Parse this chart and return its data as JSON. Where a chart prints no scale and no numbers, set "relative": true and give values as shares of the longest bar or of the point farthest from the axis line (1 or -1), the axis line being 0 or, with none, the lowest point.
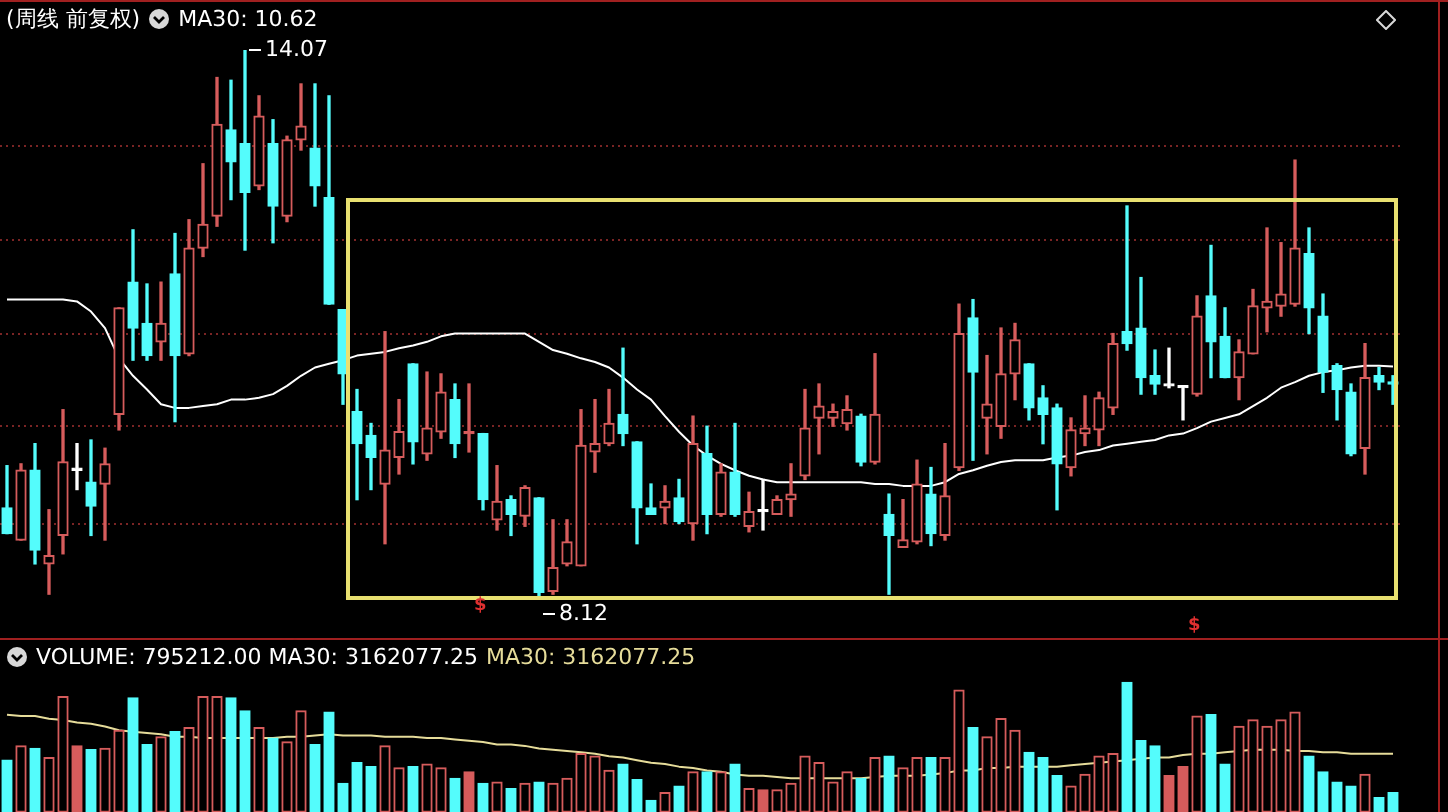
{
  "chart_data": [
    {
      "type": "candlestick",
      "title": "(周线 前复权)",
      "subtitle": "MA30: 10.62",
      "tick_labels": false,
      "grid": "y",
      "yticks": [
        {
          "value": 8.91,
          "label": null
        },
        {
          "value": 9.97,
          "label": null
        },
        {
          "value": 10.98,
          "label": null
        },
        {
          "value": 12.0,
          "label": null
        },
        {
          "value": 13.02,
          "label": null
        }
      ],
      "annotations": [
        "14.07",
        "8.12",
        "$",
        "$"
      ],
      "categories": [
        null,
        null,
        null,
        null,
        null,
        null,
        null,
        null,
        null,
        null,
        null,
        null,
        null,
        null,
        null,
        null,
        null,
        null,
        null,
        null,
        null,
        null,
        null,
        null,
        null,
        null,
        null,
        null,
        null,
        null,
        null,
        null,
        null,
        null,
        null,
        null,
        null,
        null,
        null,
        null,
        null,
        null,
        null,
        null,
        null,
        null,
        null,
        null,
        null,
        null,
        null,
        null,
        null,
        null,
        null,
        null,
        null,
        null,
        null,
        null,
        null,
        null,
        null,
        null,
        null,
        null,
        null,
        null,
        null,
        null,
        null,
        null,
        null,
        null,
        null,
        null,
        null,
        null,
        null,
        null,
        null,
        null,
        null,
        null,
        null,
        null,
        null,
        null,
        null,
        null,
        null,
        null,
        null,
        null,
        null,
        null,
        null,
        null,
        null,
        null
      ],
      "ohlc": [
        [
          9.08,
          9.54,
          8.8,
          8.8
        ],
        [
          8.73,
          9.56,
          8.73,
          9.49
        ],
        [
          9.49,
          9.78,
          8.47,
          8.62
        ],
        [
          8.47,
          9.06,
          8.14,
          8.56
        ],
        [
          8.78,
          10.15,
          8.58,
          9.58
        ],
        [
          9.49,
          9.78,
          9.28,
          9.49
        ],
        [
          9.36,
          9.82,
          8.78,
          9.1
        ],
        [
          9.34,
          9.73,
          8.73,
          9.56
        ],
        [
          10.1,
          11.26,
          9.93,
          11.26
        ],
        [
          11.54,
          12.11,
          10.69,
          11.04
        ],
        [
          11.09,
          11.52,
          10.69,
          10.74
        ],
        [
          10.89,
          11.54,
          10.69,
          11.09
        ],
        [
          11.63,
          12.07,
          10.02,
          10.74
        ],
        [
          10.76,
          12.22,
          10.74,
          11.91
        ],
        [
          11.91,
          12.83,
          11.82,
          12.17
        ],
        [
          12.26,
          13.77,
          12.15,
          13.26
        ],
        [
          13.2,
          13.74,
          12.44,
          12.85
        ],
        [
          13.05,
          14.07,
          11.89,
          12.52
        ],
        [
          12.59,
          13.57,
          12.55,
          13.35
        ],
        [
          13.05,
          13.31,
          11.97,
          12.37
        ],
        [
          12.26,
          13.13,
          12.2,
          13.09
        ],
        [
          13.09,
          13.7,
          12.98,
          13.24
        ],
        [
          13.0,
          13.7,
          12.37,
          12.59
        ],
        [
          12.46,
          13.57,
          11.3,
          11.3
        ],
        [
          11.24,
          11.24,
          10.21,
          10.54
        ],
        [
          10.13,
          10.37,
          9.17,
          9.78
        ],
        [
          9.87,
          10.0,
          9.28,
          9.63
        ],
        [
          9.34,
          11.0,
          8.69,
          9.71
        ],
        [
          9.63,
          10.26,
          9.45,
          9.91
        ],
        [
          10.65,
          10.65,
          9.56,
          9.8
        ],
        [
          9.67,
          10.56,
          9.6,
          9.95
        ],
        [
          9.91,
          10.54,
          9.84,
          10.34
        ],
        [
          10.26,
          10.43,
          9.63,
          9.78
        ],
        [
          9.89,
          10.43,
          9.69,
          9.89
        ],
        [
          9.89,
          9.89,
          9.06,
          9.17
        ],
        [
          8.95,
          9.54,
          8.84,
          9.15
        ],
        [
          9.17,
          9.21,
          8.78,
          9.01
        ],
        [
          8.99,
          9.32,
          8.88,
          9.3
        ],
        [
          9.19,
          9.19,
          8.12,
          8.16
        ],
        [
          8.17,
          8.95,
          8.14,
          8.43
        ],
        [
          8.47,
          8.95,
          8.45,
          8.71
        ],
        [
          8.45,
          10.15,
          8.45,
          9.76
        ],
        [
          9.69,
          10.26,
          9.47,
          9.78
        ],
        [
          9.78,
          10.37,
          9.76,
          10.0
        ],
        [
          10.1,
          10.82,
          9.76,
          9.89
        ],
        [
          9.8,
          9.8,
          8.69,
          9.08
        ],
        [
          9.08,
          9.34,
          9.01,
          9.01
        ],
        [
          9.08,
          9.32,
          8.91,
          9.15
        ],
        [
          9.19,
          9.39,
          8.91,
          8.93
        ],
        [
          8.91,
          10.08,
          8.73,
          9.78
        ],
        [
          9.67,
          9.97,
          8.8,
          9.01
        ],
        [
          9.01,
          9.56,
          8.99,
          9.47
        ],
        [
          9.47,
          10.0,
          8.99,
          9.01
        ],
        [
          8.88,
          9.25,
          8.82,
          9.04
        ],
        [
          9.04,
          9.39,
          8.84,
          9.04
        ],
        [
          9.01,
          9.21,
          9.01,
          9.17
        ],
        [
          9.17,
          9.56,
          8.99,
          9.23
        ],
        [
          9.43,
          10.37,
          9.39,
          9.95
        ],
        [
          10.06,
          10.43,
          9.67,
          10.19
        ],
        [
          10.06,
          10.21,
          9.97,
          10.13
        ],
        [
          10.0,
          10.3,
          9.93,
          10.15
        ],
        [
          10.08,
          10.1,
          9.54,
          9.58
        ],
        [
          9.58,
          10.76,
          9.56,
          10.1
        ],
        [
          9.01,
          9.23,
          8.14,
          8.78
        ],
        [
          8.65,
          9.17,
          8.65,
          8.73
        ],
        [
          8.71,
          9.6,
          8.69,
          9.34
        ],
        [
          9.23,
          9.52,
          8.67,
          8.8
        ],
        [
          8.78,
          9.78,
          8.73,
          9.21
        ],
        [
          9.52,
          11.3,
          9.49,
          10.98
        ],
        [
          11.15,
          11.35,
          9.6,
          10.56
        ],
        [
          10.06,
          10.74,
          9.67,
          10.21
        ],
        [
          9.97,
          11.04,
          9.84,
          10.54
        ],
        [
          10.54,
          11.09,
          10.26,
          10.91
        ],
        [
          10.65,
          10.65,
          10.04,
          10.17
        ],
        [
          10.28,
          10.41,
          9.78,
          10.1
        ],
        [
          10.17,
          10.21,
          9.06,
          9.56
        ],
        [
          9.52,
          10.06,
          9.43,
          9.93
        ],
        [
          9.89,
          10.3,
          9.76,
          9.95
        ],
        [
          9.93,
          10.34,
          9.76,
          10.28
        ],
        [
          10.17,
          10.98,
          10.1,
          10.87
        ],
        [
          11.0,
          12.37,
          10.8,
          10.87
        ],
        [
          11.04,
          11.59,
          10.32,
          10.5
        ],
        [
          10.52,
          10.8,
          10.32,
          10.43
        ],
        [
          10.41,
          10.82,
          10.39,
          10.41
        ],
        [
          10.39,
          10.39,
          10.04,
          10.39
        ],
        [
          10.32,
          11.39,
          10.3,
          11.17
        ],
        [
          11.39,
          11.94,
          10.5,
          10.89
        ],
        [
          10.95,
          11.26,
          10.5,
          10.5
        ],
        [
          10.5,
          10.91,
          10.26,
          10.78
        ],
        [
          10.76,
          11.46,
          10.76,
          11.28
        ],
        [
          11.26,
          12.13,
          11.0,
          11.33
        ],
        [
          11.28,
          11.97,
          11.17,
          11.41
        ],
        [
          11.3,
          12.87,
          11.28,
          11.91
        ],
        [
          11.85,
          12.13,
          10.98,
          11.26
        ],
        [
          11.17,
          11.41,
          10.34,
          10.56
        ],
        [
          10.63,
          10.65,
          10.04,
          10.37
        ],
        [
          10.34,
          10.43,
          9.65,
          9.67
        ],
        [
          9.73,
          10.87,
          9.45,
          10.5
        ],
        [
          10.52,
          10.61,
          10.37,
          10.45
        ],
        [
          10.43,
          10.52,
          10.21,
          10.43
        ]
      ],
      "colors": [
        "#54fcfc",
        "#d65c5c",
        "#54fcfc",
        "#d65c5c",
        "#d65c5c",
        "#ffffff",
        "#54fcfc",
        "#d65c5c",
        "#d65c5c",
        "#54fcfc",
        "#54fcfc",
        "#d65c5c",
        "#54fcfc",
        "#d65c5c",
        "#d65c5c",
        "#d65c5c",
        "#54fcfc",
        "#54fcfc",
        "#d65c5c",
        "#54fcfc",
        "#d65c5c",
        "#d65c5c",
        "#54fcfc",
        "#54fcfc",
        "#54fcfc",
        "#54fcfc",
        "#54fcfc",
        "#d65c5c",
        "#d65c5c",
        "#54fcfc",
        "#d65c5c",
        "#d65c5c",
        "#54fcfc",
        "#d65c5c",
        "#54fcfc",
        "#d65c5c",
        "#54fcfc",
        "#d65c5c",
        "#54fcfc",
        "#d65c5c",
        "#d65c5c",
        "#d65c5c",
        "#d65c5c",
        "#d65c5c",
        "#54fcfc",
        "#54fcfc",
        "#54fcfc",
        "#d65c5c",
        "#54fcfc",
        "#d65c5c",
        "#54fcfc",
        "#d65c5c",
        "#54fcfc",
        "#d65c5c",
        "#ffffff",
        "#d65c5c",
        "#d65c5c",
        "#d65c5c",
        "#d65c5c",
        "#d65c5c",
        "#d65c5c",
        "#54fcfc",
        "#d65c5c",
        "#54fcfc",
        "#d65c5c",
        "#d65c5c",
        "#54fcfc",
        "#d65c5c",
        "#d65c5c",
        "#54fcfc",
        "#d65c5c",
        "#d65c5c",
        "#d65c5c",
        "#54fcfc",
        "#54fcfc",
        "#54fcfc",
        "#d65c5c",
        "#d65c5c",
        "#d65c5c",
        "#d65c5c",
        "#54fcfc",
        "#54fcfc",
        "#54fcfc",
        "#ffffff",
        "#ffffff",
        "#d65c5c",
        "#54fcfc",
        "#54fcfc",
        "#d65c5c",
        "#d65c5c",
        "#d65c5c",
        "#d65c5c",
        "#d65c5c",
        "#54fcfc",
        "#54fcfc",
        "#54fcfc",
        "#54fcfc",
        "#d65c5c",
        "#54fcfc",
        "#54fcfc"
      ],
      "series": [
        {
          "type": "line",
          "color": "#ffffff",
          "values": [
            11.35,
            11.35,
            11.35,
            11.35,
            11.35,
            11.33,
            11.22,
            11.04,
            10.71,
            10.52,
            10.37,
            10.21,
            10.17,
            10.17,
            10.19,
            10.21,
            10.26,
            10.26,
            10.28,
            10.32,
            10.41,
            10.52,
            10.61,
            10.65,
            10.69,
            10.74,
            10.76,
            10.78,
            10.82,
            10.85,
            10.89,
            10.95,
            10.98,
            10.98,
            10.98,
            10.98,
            10.98,
            10.98,
            10.89,
            10.8,
            10.76,
            10.71,
            10.67,
            10.61,
            10.5,
            10.37,
            10.26,
            10.08,
            9.91,
            9.76,
            9.65,
            9.56,
            9.49,
            9.43,
            9.39,
            9.36,
            9.36,
            9.36,
            9.36,
            9.36,
            9.36,
            9.36,
            9.34,
            9.34,
            9.32,
            9.32,
            9.32,
            9.36,
            9.45,
            9.49,
            9.54,
            9.58,
            9.6,
            9.6,
            9.6,
            9.63,
            9.65,
            9.69,
            9.71,
            9.76,
            9.78,
            9.8,
            9.82,
            9.87,
            9.89,
            9.95,
            10.02,
            10.06,
            10.1,
            10.19,
            10.28,
            10.39,
            10.45,
            10.52,
            10.56,
            10.58,
            10.61,
            10.63,
            10.63,
            10.62
          ]
        }
      ]
    },
    {
      "type": "bar",
      "relative": true,
      "title": "VOLUME: 795212.00 MA30: 3162077.25",
      "subtitle": "MA30: 3162077.25",
      "tick_labels": false,
      "categories": [
        null,
        null,
        null,
        null,
        null,
        null,
        null,
        null,
        null,
        null,
        null,
        null,
        null,
        null,
        null,
        null,
        null,
        null,
        null,
        null,
        null,
        null,
        null,
        null,
        null,
        null,
        null,
        null,
        null,
        null,
        null,
        null,
        null,
        null,
        null,
        null,
        null,
        null,
        null,
        null,
        null,
        null,
        null,
        null,
        null,
        null,
        null,
        null,
        null,
        null,
        null,
        null,
        null,
        null,
        null,
        null,
        null,
        null,
        null,
        null,
        null,
        null,
        null,
        null,
        null,
        null,
        null,
        null,
        null,
        null,
        null,
        null,
        null,
        null,
        null,
        null,
        null,
        null,
        null,
        null,
        null,
        null,
        null,
        null,
        null,
        null,
        null,
        null,
        null,
        null,
        null,
        null,
        null,
        null,
        null,
        null,
        null,
        null,
        null,
        null
      ],
      "series": [
        {
          "type": "bar",
          "values": [
            0.4,
            0.51,
            0.49,
            0.42,
            0.89,
            0.51,
            0.48,
            0.49,
            0.63,
            0.88,
            0.52,
            0.58,
            0.62,
            0.65,
            0.89,
            0.89,
            0.88,
            0.78,
            0.65,
            0.57,
            0.54,
            0.78,
            0.52,
            0.77,
            0.22,
            0.38,
            0.35,
            0.51,
            0.34,
            0.35,
            0.37,
            0.34,
            0.26,
            0.31,
            0.22,
            0.23,
            0.18,
            0.22,
            0.23,
            0.22,
            0.26,
            0.45,
            0.43,
            0.32,
            0.37,
            0.25,
            0.09,
            0.15,
            0.2,
            0.31,
            0.31,
            0.31,
            0.37,
            0.18,
            0.17,
            0.17,
            0.22,
            0.43,
            0.38,
            0.23,
            0.31,
            0.26,
            0.42,
            0.43,
            0.34,
            0.42,
            0.42,
            0.42,
            0.94,
            0.65,
            0.58,
            0.72,
            0.63,
            0.46,
            0.42,
            0.28,
            0.2,
            0.29,
            0.43,
            0.45,
            1,
            0.55,
            0.51,
            0.28,
            0.35,
            0.74,
            0.75,
            0.37,
            0.66,
            0.71,
            0.66,
            0.71,
            0.77,
            0.43,
            0.31,
            0.23,
            0.2,
            0.29,
            0.11,
            0.15
          ],
          "colors": [
            "#54fcfc",
            "#d65c5c",
            "#54fcfc",
            "#d65c5c",
            "#d65c5c",
            "#d65c5c",
            "#54fcfc",
            "#d65c5c",
            "#d65c5c",
            "#54fcfc",
            "#54fcfc",
            "#d65c5c",
            "#54fcfc",
            "#d65c5c",
            "#d65c5c",
            "#d65c5c",
            "#54fcfc",
            "#54fcfc",
            "#d65c5c",
            "#54fcfc",
            "#d65c5c",
            "#d65c5c",
            "#54fcfc",
            "#54fcfc",
            "#54fcfc",
            "#54fcfc",
            "#54fcfc",
            "#d65c5c",
            "#d65c5c",
            "#54fcfc",
            "#d65c5c",
            "#d65c5c",
            "#54fcfc",
            "#d65c5c",
            "#54fcfc",
            "#d65c5c",
            "#54fcfc",
            "#d65c5c",
            "#54fcfc",
            "#d65c5c",
            "#d65c5c",
            "#d65c5c",
            "#d65c5c",
            "#d65c5c",
            "#54fcfc",
            "#54fcfc",
            "#54fcfc",
            "#d65c5c",
            "#54fcfc",
            "#d65c5c",
            "#54fcfc",
            "#d65c5c",
            "#54fcfc",
            "#d65c5c",
            "#d65c5c",
            "#d65c5c",
            "#d65c5c",
            "#d65c5c",
            "#d65c5c",
            "#d65c5c",
            "#d65c5c",
            "#54fcfc",
            "#d65c5c",
            "#54fcfc",
            "#d65c5c",
            "#d65c5c",
            "#54fcfc",
            "#d65c5c",
            "#d65c5c",
            "#54fcfc",
            "#d65c5c",
            "#d65c5c",
            "#d65c5c",
            "#54fcfc",
            "#54fcfc",
            "#54fcfc",
            "#d65c5c",
            "#d65c5c",
            "#d65c5c",
            "#d65c5c",
            "#54fcfc",
            "#54fcfc",
            "#54fcfc",
            "#d65c5c",
            "#d65c5c",
            "#d65c5c",
            "#54fcfc",
            "#54fcfc",
            "#d65c5c",
            "#d65c5c",
            "#d65c5c",
            "#d65c5c",
            "#d65c5c",
            "#54fcfc",
            "#54fcfc",
            "#54fcfc",
            "#54fcfc",
            "#d65c5c",
            "#54fcfc",
            "#54fcfc"
          ]
        },
        {
          "type": "line",
          "color": "#e6dc9a",
          "values": [
            0.75,
            0.74,
            0.74,
            0.72,
            0.71,
            0.69,
            0.68,
            0.66,
            0.63,
            0.62,
            0.61,
            0.6,
            0.58,
            0.58,
            0.57,
            0.57,
            0.57,
            0.57,
            0.57,
            0.57,
            0.58,
            0.58,
            0.59,
            0.6,
            0.59,
            0.59,
            0.59,
            0.58,
            0.58,
            0.58,
            0.57,
            0.57,
            0.56,
            0.55,
            0.54,
            0.52,
            0.52,
            0.51,
            0.49,
            0.48,
            0.47,
            0.46,
            0.45,
            0.43,
            0.42,
            0.4,
            0.38,
            0.37,
            0.35,
            0.34,
            0.32,
            0.31,
            0.29,
            0.28,
            0.28,
            0.27,
            0.26,
            0.26,
            0.26,
            0.26,
            0.26,
            0.26,
            0.27,
            0.28,
            0.28,
            0.28,
            0.29,
            0.3,
            0.32,
            0.32,
            0.34,
            0.34,
            0.35,
            0.35,
            0.35,
            0.35,
            0.36,
            0.37,
            0.38,
            0.39,
            0.4,
            0.41,
            0.42,
            0.42,
            0.44,
            0.45,
            0.45,
            0.46,
            0.47,
            0.48,
            0.48,
            0.48,
            0.47,
            0.47,
            0.46,
            0.46,
            0.45,
            0.45,
            0.45,
            0.45
          ]
        }
      ]
    }
  ]
}
